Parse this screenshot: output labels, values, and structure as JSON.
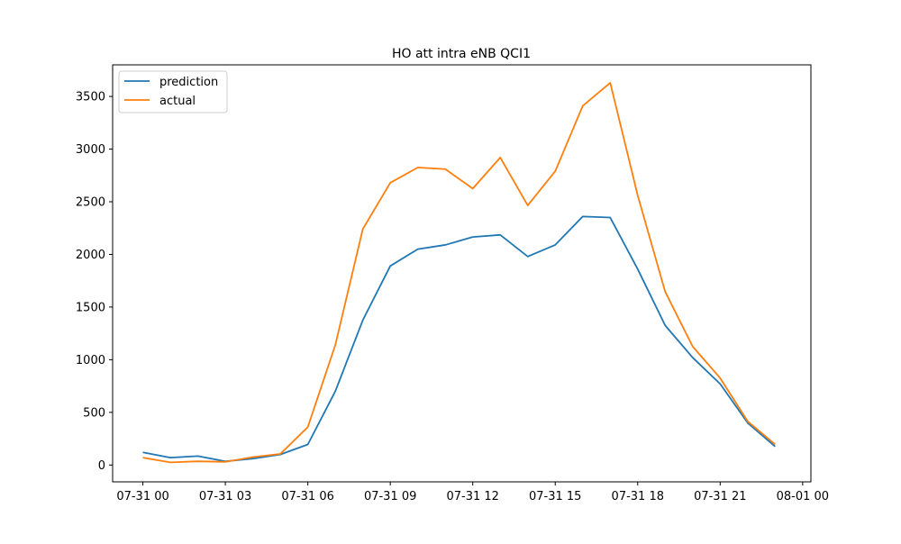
{
  "chart_data": {
    "type": "line",
    "title": "HO att intra eNB QCI1",
    "xlabel": "",
    "ylabel": "",
    "x_hours": [
      0,
      1,
      2,
      3,
      4,
      5,
      6,
      7,
      8,
      9,
      10,
      11,
      12,
      13,
      14,
      15,
      16,
      17,
      18,
      19,
      20,
      21,
      22,
      23
    ],
    "xlim": [
      -1.1,
      24.3
    ],
    "ylim": [
      -160,
      3800
    ],
    "x_ticks": [
      {
        "value": 0,
        "label": "07-31 00"
      },
      {
        "value": 3,
        "label": "07-31 03"
      },
      {
        "value": 6,
        "label": "07-31 06"
      },
      {
        "value": 9,
        "label": "07-31 09"
      },
      {
        "value": 12,
        "label": "07-31 12"
      },
      {
        "value": 15,
        "label": "07-31 15"
      },
      {
        "value": 18,
        "label": "07-31 18"
      },
      {
        "value": 21,
        "label": "07-31 21"
      },
      {
        "value": 24,
        "label": "08-01 00"
      }
    ],
    "y_ticks": [
      {
        "value": 0,
        "label": "0"
      },
      {
        "value": 500,
        "label": "500"
      },
      {
        "value": 1000,
        "label": "1000"
      },
      {
        "value": 1500,
        "label": "1500"
      },
      {
        "value": 2000,
        "label": "2000"
      },
      {
        "value": 2500,
        "label": "2500"
      },
      {
        "value": 3000,
        "label": "3000"
      },
      {
        "value": 3500,
        "label": "3500"
      }
    ],
    "grid": false,
    "legend_position": "top-left",
    "series": [
      {
        "name": "prediction",
        "color": "#1f77b4",
        "values": [
          120,
          70,
          85,
          35,
          60,
          100,
          195,
          700,
          1375,
          1890,
          2050,
          2090,
          2165,
          2185,
          1980,
          2090,
          2360,
          2350,
          1860,
          1325,
          1020,
          770,
          400,
          175
        ]
      },
      {
        "name": "actual",
        "color": "#ff7f0e",
        "values": [
          70,
          25,
          35,
          30,
          75,
          105,
          360,
          1140,
          2240,
          2680,
          2825,
          2810,
          2625,
          2920,
          2465,
          2790,
          3410,
          3630,
          2560,
          1645,
          1125,
          825,
          415,
          195
        ]
      }
    ]
  }
}
